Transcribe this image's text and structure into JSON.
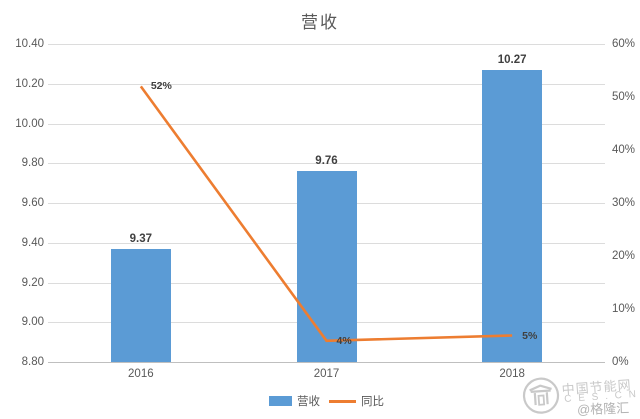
{
  "title": "营收",
  "chart_data": {
    "type": "bar",
    "categories": [
      "2016",
      "2017",
      "2018"
    ],
    "series": [
      {
        "name": "营收",
        "type": "bar",
        "axis": "left",
        "values": [
          9.37,
          9.76,
          10.27
        ],
        "labels": [
          "9.37",
          "9.76",
          "10.27"
        ]
      },
      {
        "name": "同比",
        "type": "line",
        "axis": "right",
        "values": [
          52,
          4,
          5
        ],
        "labels": [
          "52%",
          "4%",
          "5%"
        ]
      }
    ],
    "left_axis": {
      "min": 8.8,
      "max": 10.4,
      "step": 0.2,
      "ticks": [
        "10.40",
        "10.20",
        "10.00",
        "9.80",
        "9.60",
        "9.40",
        "9.20",
        "9.00",
        "8.80"
      ]
    },
    "right_axis": {
      "min": 0,
      "max": 60,
      "step": 10,
      "ticks": [
        "60%",
        "50%",
        "40%",
        "30%",
        "20%",
        "10%",
        "0%"
      ]
    },
    "grid": true,
    "legend_position": "bottom",
    "legend": [
      "营收",
      "同比"
    ]
  },
  "colors": {
    "bar": "#5B9BD5",
    "line": "#ED7D31",
    "grid": "#dcdcdc",
    "axis_text": "#595959",
    "data_label": "#404040",
    "watermark": "#c9c9c9"
  },
  "watermark": {
    "site_name": "中国节能网",
    "site_abbr": "C E S . C N",
    "handle": "@格隆汇"
  }
}
